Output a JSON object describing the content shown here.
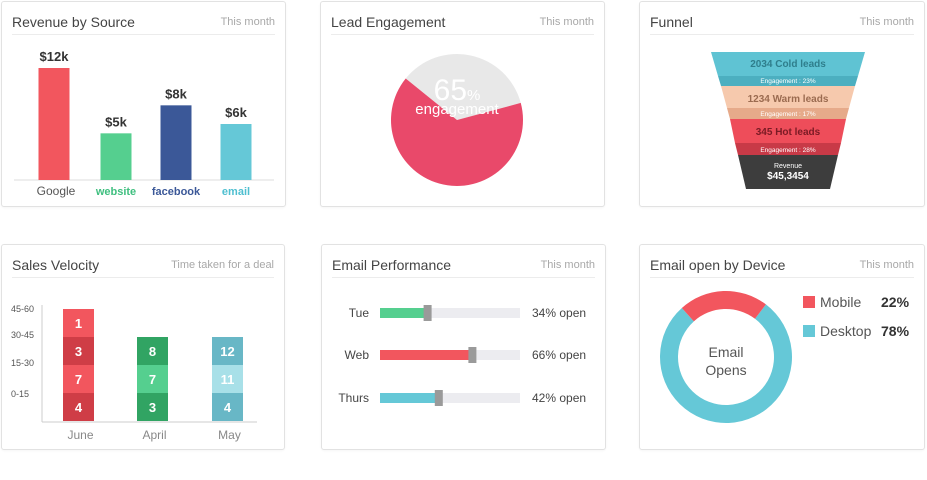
{
  "cards": {
    "revenue": {
      "title": "Revenue by Source",
      "subtitle": "This month"
    },
    "lead": {
      "title": "Lead Engagement",
      "subtitle": "This month"
    },
    "funnel": {
      "title": "Funnel",
      "subtitle": "This month"
    },
    "velocity": {
      "title": "Sales Velocity",
      "subtitle": "Time taken for a deal"
    },
    "email_perf": {
      "title": "Email Performance",
      "subtitle": "This month"
    },
    "device": {
      "title": "Email open by Device",
      "subtitle": "This month"
    }
  },
  "revenue": {
    "bars": [
      {
        "label": "Google",
        "value": 12,
        "value_label": "$12k",
        "color": "#f2565e",
        "label_color": "#555555"
      },
      {
        "label": "website",
        "value": 5,
        "value_label": "$5k",
        "color": "#55cf8f",
        "label_color": "#3fbf7f"
      },
      {
        "label": "facebook",
        "value": 8,
        "value_label": "$8k",
        "color": "#3b5898",
        "label_color": "#3b5898"
      },
      {
        "label": "email",
        "value": 6,
        "value_label": "$6k",
        "color": "#65c8d7",
        "label_color": "#4fbfd0"
      }
    ]
  },
  "lead": {
    "percent": 65,
    "percent_text": "65",
    "percent_sign": "%",
    "caption": "engagement",
    "color": "#e9496a",
    "rest_color": "#e8e8e8"
  },
  "funnel": {
    "stages": [
      {
        "label": "2034 Cold leads",
        "sub": "Engagement : 23%",
        "color": "#5fc3d3",
        "sub_color": "#4cafc0"
      },
      {
        "label": "1234 Warm leads",
        "sub": "Engagement : 17%",
        "color": "#f6c9ad",
        "sub_color": "#e6aa8a"
      },
      {
        "label": "345 Hot leads",
        "sub": "Engagement : 28%",
        "color": "#ee4d5a",
        "sub_color": "#c83a47"
      },
      {
        "label": "Revenue",
        "value": "$45,3454",
        "color": "#3d3d3d"
      }
    ]
  },
  "velocity": {
    "y_ticks": [
      "45-60",
      "30-45",
      "15-30",
      "0-15"
    ],
    "months": [
      {
        "name": "June",
        "segments": [
          {
            "value": "1",
            "color": "#f2565e"
          },
          {
            "value": "3",
            "color": "#cf3d46"
          },
          {
            "value": "7",
            "color": "#f2565e"
          },
          {
            "value": "4",
            "color": "#cf3d46"
          }
        ]
      },
      {
        "name": "April",
        "segments": [
          {
            "value": "8",
            "color": "#31a463"
          },
          {
            "value": "7",
            "color": "#55cf8f"
          },
          {
            "value": "3",
            "color": "#31a463"
          }
        ]
      },
      {
        "name": "May",
        "segments": [
          {
            "value": "12",
            "color": "#68b7c6"
          },
          {
            "value": "11",
            "color": "#a8e0e8"
          },
          {
            "value": "4",
            "color": "#68b7c6"
          }
        ]
      }
    ]
  },
  "email_perf": {
    "rows": [
      {
        "day": "Tue",
        "percent": 34,
        "label": "34% open",
        "color": "#55cf8f"
      },
      {
        "day": "Web",
        "percent": 66,
        "label": "66% open",
        "color": "#f2565e"
      },
      {
        "day": "Thurs",
        "percent": 42,
        "label": "42% open",
        "color": "#65c8d7"
      }
    ]
  },
  "device": {
    "center_line1": "Email",
    "center_line2": "Opens",
    "segments": [
      {
        "name": "Mobile",
        "percent": 22,
        "value_label": "22%",
        "color": "#f2565e"
      },
      {
        "name": "Desktop",
        "percent": 78,
        "value_label": "78%",
        "color": "#65c8d7"
      }
    ]
  }
}
